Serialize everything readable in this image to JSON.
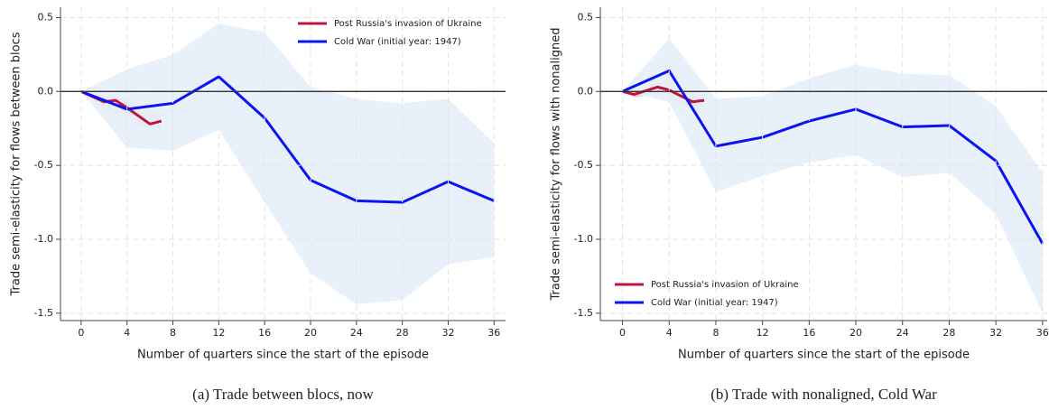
{
  "chart_data": [
    {
      "type": "line",
      "caption": "(a)  Trade between blocs, now",
      "xlabel": "Number of quarters since the start of the episode",
      "ylabel": "Trade semi-elasticity for flows between blocs",
      "xlim": [
        -1.8,
        37
      ],
      "ylim": [
        -1.55,
        0.57
      ],
      "xticks": [
        0,
        4,
        8,
        12,
        16,
        20,
        24,
        28,
        32,
        36
      ],
      "yticks": [
        0.5,
        {
          "value": 0,
          "label": "0.0"
        },
        -0.5,
        {
          "value": -1,
          "label": "-1.0"
        },
        -1.5
      ],
      "grid": true,
      "hline": 0,
      "legend": "upper right",
      "series": [
        {
          "name": "Post Russia's invasion of Ukraine",
          "color": "#c0143c",
          "band_color": "#e8c4cc",
          "x": [
            0,
            2,
            3,
            4,
            6,
            7
          ],
          "values": [
            0,
            -0.07,
            -0.06,
            -0.11,
            -0.22,
            -0.2
          ],
          "upper": [
            0,
            -0.03,
            -0.03,
            -0.05,
            -0.15,
            -0.15
          ],
          "lower": [
            0,
            -0.1,
            -0.1,
            -0.17,
            -0.28,
            -0.26
          ]
        },
        {
          "name": "Cold War (initial year: 1947)",
          "color": "#0a14f0",
          "band_color": "#e6f0fa",
          "x": [
            0,
            4,
            8,
            12,
            16,
            20,
            24,
            28,
            32,
            36
          ],
          "values": [
            0,
            -0.12,
            -0.08,
            0.1,
            -0.18,
            -0.6,
            -0.74,
            -0.75,
            -0.61,
            -0.74
          ],
          "upper": [
            0,
            0.15,
            0.25,
            0.46,
            0.4,
            0.03,
            -0.05,
            -0.08,
            -0.05,
            -0.35
          ],
          "lower": [
            0,
            -0.38,
            -0.4,
            -0.26,
            -0.75,
            -1.23,
            -1.44,
            -1.41,
            -1.17,
            -1.12
          ]
        }
      ]
    },
    {
      "type": "line",
      "caption": "(b)  Trade with nonaligned, Cold War",
      "xlabel": "Number of quarters since the start of the episode",
      "ylabel": "Trade semi-elasticity for flows with nonaligned",
      "xlim": [
        -1.9,
        36.4
      ],
      "ylim": [
        -1.55,
        0.57
      ],
      "xticks": [
        0,
        4,
        8,
        12,
        16,
        20,
        24,
        28,
        32,
        36
      ],
      "yticks": [
        0.5,
        {
          "value": 0,
          "label": "0.0"
        },
        -0.5,
        {
          "value": -1,
          "label": "-1.0"
        },
        -1.5
      ],
      "grid": true,
      "hline": 0,
      "legend": "lower left",
      "series": [
        {
          "name": "Post Russia's invasion of Ukraine",
          "color": "#c0143c",
          "band_color": "#e8c4cc",
          "x": [
            0,
            1,
            3,
            4,
            6,
            7
          ],
          "values": [
            0,
            -0.02,
            0.03,
            0.01,
            -0.07,
            -0.06
          ],
          "upper": [
            0,
            0.01,
            0.06,
            0.06,
            -0.01,
            -0.02
          ],
          "lower": [
            0,
            -0.04,
            -0.02,
            -0.05,
            -0.12,
            -0.1
          ]
        },
        {
          "name": "Cold War (initial year: 1947)",
          "color": "#0a14f0",
          "band_color": "#e6f0fa",
          "x": [
            0,
            4,
            8,
            12,
            16,
            20,
            24,
            28,
            32,
            36
          ],
          "values": [
            0,
            0.14,
            -0.37,
            -0.31,
            -0.2,
            -0.12,
            -0.24,
            -0.23,
            -0.47,
            -1.03
          ],
          "upper": [
            0,
            0.36,
            -0.05,
            -0.03,
            0.09,
            0.18,
            0.12,
            0.11,
            -0.1,
            -0.55
          ],
          "lower": [
            0,
            -0.07,
            -0.68,
            -0.57,
            -0.48,
            -0.43,
            -0.58,
            -0.55,
            -0.83,
            -1.5
          ]
        }
      ]
    }
  ]
}
